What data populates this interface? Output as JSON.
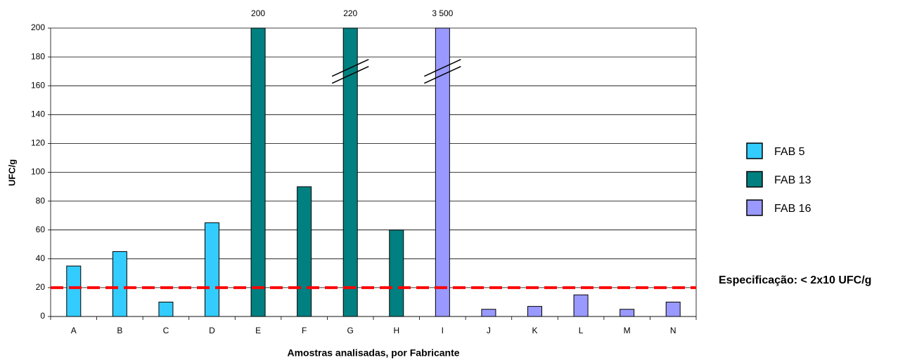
{
  "chart_data": {
    "type": "bar",
    "categories": [
      "A",
      "B",
      "C",
      "D",
      "E",
      "F",
      "G",
      "H",
      "I",
      "J",
      "K",
      "L",
      "M",
      "N"
    ],
    "series": [
      {
        "name": "FAB 5",
        "color": "#33ccff",
        "values": [
          35,
          45,
          10,
          65,
          null,
          null,
          null,
          null,
          null,
          null,
          null,
          null,
          null,
          null
        ]
      },
      {
        "name": "FAB 13",
        "color": "#008080",
        "values": [
          null,
          null,
          null,
          null,
          200,
          90,
          220,
          60,
          null,
          null,
          null,
          null,
          null,
          null
        ],
        "value_labels": [
          null,
          null,
          null,
          null,
          "200",
          null,
          "220",
          null,
          null,
          null,
          null,
          null,
          null,
          null
        ]
      },
      {
        "name": "FAB 16",
        "color": "#9999ff",
        "values": [
          null,
          null,
          null,
          null,
          null,
          null,
          null,
          null,
          3500,
          5,
          7,
          15,
          5,
          10
        ],
        "value_labels": [
          null,
          null,
          null,
          null,
          null,
          null,
          null,
          null,
          "3 500",
          null,
          null,
          null,
          null,
          null
        ]
      }
    ],
    "y_label": "UFC/g",
    "x_label": "Amostras analisadas, por Fabricante",
    "ylim": [
      0,
      200
    ],
    "yticks": [
      0,
      20,
      40,
      60,
      80,
      100,
      120,
      140,
      160,
      180,
      200
    ],
    "grid": true,
    "threshold": {
      "value": 20,
      "label": "Especificação: < 2x10 UFC/g",
      "color": "#ff0000"
    },
    "legend": "right"
  }
}
